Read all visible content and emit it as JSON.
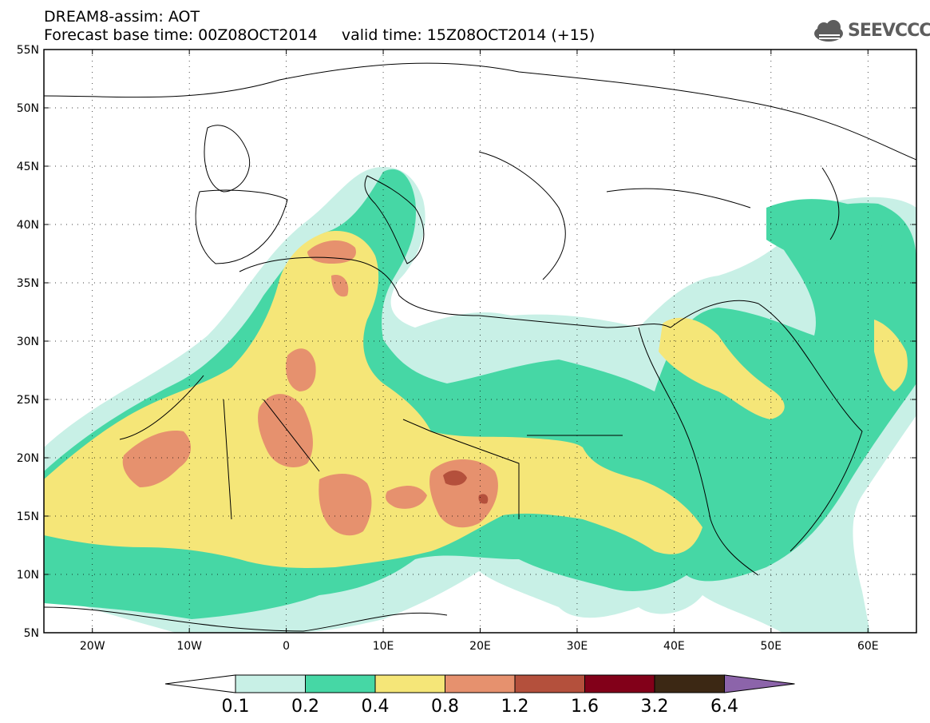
{
  "header": {
    "line1": "DREAM8-assim: AOT",
    "line2": "Forecast base time: 00Z08OCT2014     valid time: 15Z08OCT2014 (+15)",
    "logo_text": "SEEVCCC"
  },
  "map": {
    "variable": "AOT",
    "lon_range": [
      -25,
      65
    ],
    "lat_range": [
      5,
      55
    ],
    "lat_ticks": [
      "5N",
      "10N",
      "15N",
      "20N",
      "25N",
      "30N",
      "35N",
      "40N",
      "45N",
      "50N",
      "55N"
    ],
    "lon_ticks": [
      "20W",
      "10W",
      "0",
      "10E",
      "20E",
      "30E",
      "40E",
      "50E",
      "60E"
    ]
  },
  "colorbar": {
    "levels": [
      "0.1",
      "0.2",
      "0.4",
      "0.8",
      "1.2",
      "1.6",
      "3.2",
      "6.4"
    ],
    "colors": [
      "#ffffff",
      "#c8f0e6",
      "#46d7a5",
      "#f5e678",
      "#e6916e",
      "#b4503c",
      "#820019",
      "#3c2814",
      "#8c64aa"
    ]
  }
}
